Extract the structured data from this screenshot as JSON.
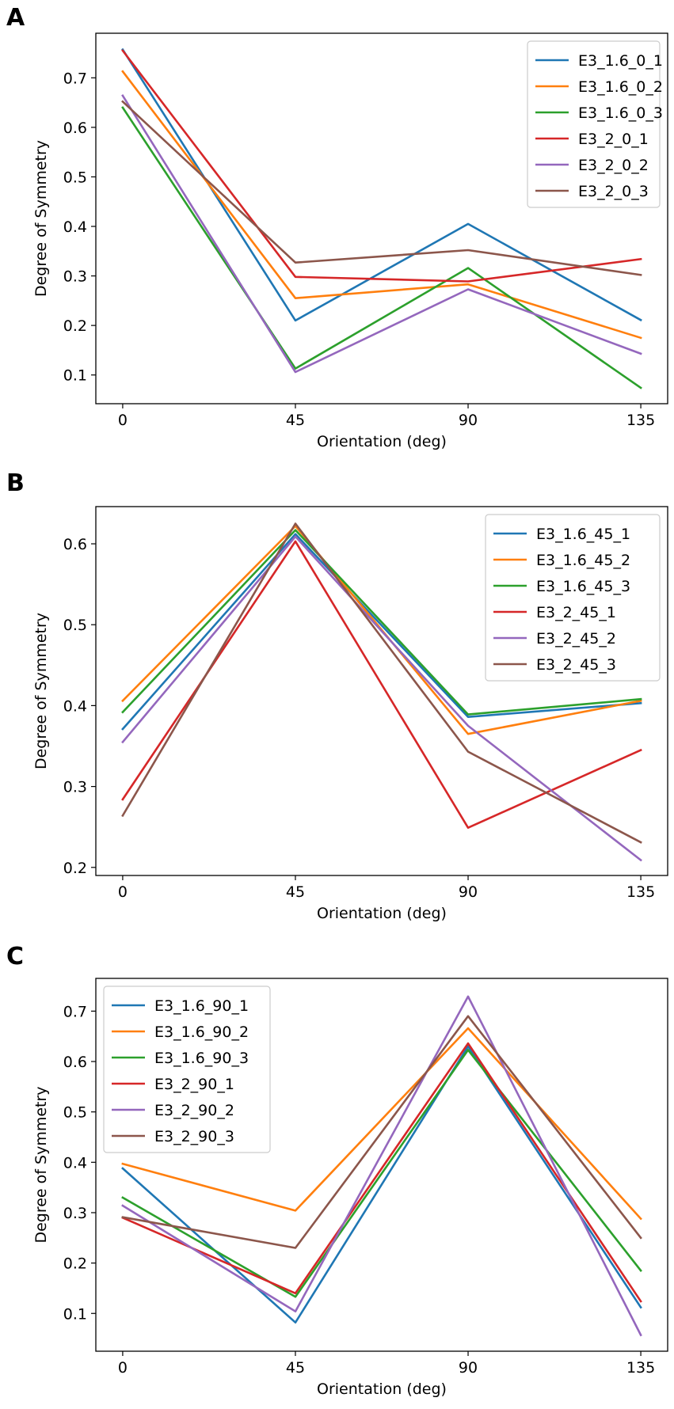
{
  "chart_data": [
    {
      "panel": "A",
      "type": "line",
      "x": [
        0,
        45,
        90,
        135
      ],
      "xticks": [
        "0",
        "45",
        "90",
        "135"
      ],
      "xlabel": "Orientation (deg)",
      "ylabel": "Degree of Symmetry",
      "ylim": [
        0.042,
        0.79
      ],
      "yticks": [
        0.1,
        0.2,
        0.3,
        0.4,
        0.5,
        0.6,
        0.7
      ],
      "ytick_labels": [
        "0.1",
        "0.2",
        "0.3",
        "0.4",
        "0.5",
        "0.6",
        "0.7"
      ],
      "legend_position": "top-right",
      "grid": false,
      "series": [
        {
          "name": "E3_1.6_0_1",
          "color": "#1f77b4",
          "values": [
            0.757,
            0.21,
            0.405,
            0.211
          ]
        },
        {
          "name": "E3_1.6_0_2",
          "color": "#ff7f0e",
          "values": [
            0.713,
            0.255,
            0.283,
            0.175
          ]
        },
        {
          "name": "E3_1.6_0_3",
          "color": "#2ca02c",
          "values": [
            0.64,
            0.113,
            0.316,
            0.074
          ]
        },
        {
          "name": "E3_2_0_1",
          "color": "#d62728",
          "values": [
            0.755,
            0.298,
            0.289,
            0.334
          ]
        },
        {
          "name": "E3_2_0_2",
          "color": "#9467bd",
          "values": [
            0.664,
            0.106,
            0.273,
            0.143
          ]
        },
        {
          "name": "E3_2_0_3",
          "color": "#8c564b",
          "values": [
            0.652,
            0.327,
            0.352,
            0.302
          ]
        }
      ]
    },
    {
      "panel": "B",
      "type": "line",
      "x": [
        0,
        45,
        90,
        135
      ],
      "xticks": [
        "0",
        "45",
        "90",
        "135"
      ],
      "xlabel": "Orientation (deg)",
      "ylabel": "Degree of Symmetry",
      "ylim": [
        0.19,
        0.646
      ],
      "yticks": [
        0.2,
        0.3,
        0.4,
        0.5,
        0.6
      ],
      "ytick_labels": [
        "0.2",
        "0.3",
        "0.4",
        "0.5",
        "0.6"
      ],
      "legend_position": "top-right",
      "grid": false,
      "series": [
        {
          "name": "E3_1.6_45_1",
          "color": "#1f77b4",
          "values": [
            0.371,
            0.612,
            0.386,
            0.403
          ]
        },
        {
          "name": "E3_1.6_45_2",
          "color": "#ff7f0e",
          "values": [
            0.406,
            0.622,
            0.365,
            0.406
          ]
        },
        {
          "name": "E3_1.6_45_3",
          "color": "#2ca02c",
          "values": [
            0.392,
            0.617,
            0.389,
            0.408
          ]
        },
        {
          "name": "E3_2_45_1",
          "color": "#d62728",
          "values": [
            0.284,
            0.603,
            0.249,
            0.345
          ]
        },
        {
          "name": "E3_2_45_2",
          "color": "#9467bd",
          "values": [
            0.355,
            0.609,
            0.375,
            0.209
          ]
        },
        {
          "name": "E3_2_45_3",
          "color": "#8c564b",
          "values": [
            0.264,
            0.625,
            0.343,
            0.231
          ]
        }
      ]
    },
    {
      "panel": "C",
      "type": "line",
      "x": [
        0,
        45,
        90,
        135
      ],
      "xticks": [
        "0",
        "45",
        "90",
        "135"
      ],
      "xlabel": "Orientation (deg)",
      "ylabel": "Degree of Symmetry",
      "ylim": [
        0.025,
        0.765
      ],
      "yticks": [
        0.1,
        0.2,
        0.3,
        0.4,
        0.5,
        0.6,
        0.7
      ],
      "ytick_labels": [
        "0.1",
        "0.2",
        "0.3",
        "0.4",
        "0.5",
        "0.6",
        "0.7"
      ],
      "legend_position": "top-left",
      "grid": false,
      "series": [
        {
          "name": "E3_1.6_90_1",
          "color": "#1f77b4",
          "values": [
            0.388,
            0.082,
            0.63,
            0.112
          ]
        },
        {
          "name": "E3_1.6_90_2",
          "color": "#ff7f0e",
          "values": [
            0.397,
            0.304,
            0.666,
            0.288
          ]
        },
        {
          "name": "E3_1.6_90_3",
          "color": "#2ca02c",
          "values": [
            0.33,
            0.133,
            0.623,
            0.185
          ]
        },
        {
          "name": "E3_2_90_1",
          "color": "#d62728",
          "values": [
            0.29,
            0.14,
            0.636,
            0.124
          ]
        },
        {
          "name": "E3_2_90_2",
          "color": "#9467bd",
          "values": [
            0.314,
            0.104,
            0.729,
            0.057
          ]
        },
        {
          "name": "E3_2_90_3",
          "color": "#8c564b",
          "values": [
            0.291,
            0.23,
            0.69,
            0.25
          ]
        }
      ]
    }
  ]
}
